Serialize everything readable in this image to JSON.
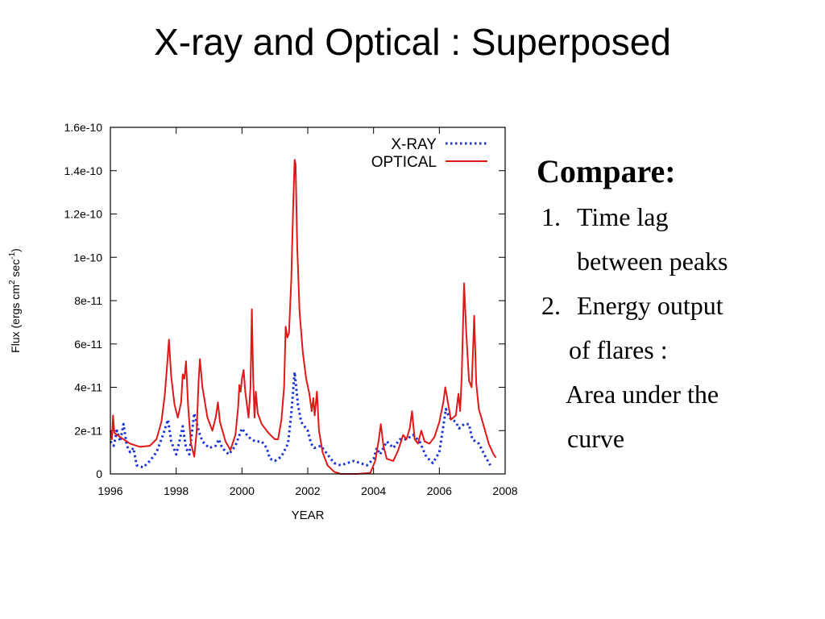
{
  "slide": {
    "title": "X-ray and Optical : Superposed"
  },
  "notes": {
    "heading": "Compare:",
    "items": [
      {
        "number": "1.",
        "lines": [
          "Time lag",
          "between peaks"
        ]
      },
      {
        "number": "2.",
        "lines": [
          "Energy output",
          "of flares :",
          "Area under the",
          "curve"
        ]
      }
    ]
  },
  "chart_data": {
    "type": "line",
    "title": "",
    "xlabel": "YEAR",
    "ylabel": "Flux (ergs cm² sec⁻¹)",
    "ylabel_parts": [
      "Flux (ergs cm",
      "2",
      " sec",
      "-1",
      ")"
    ],
    "xlim": [
      1996,
      2008
    ],
    "ylim": [
      0,
      1.6e-10
    ],
    "x_ticks": [
      1996,
      1998,
      2000,
      2002,
      2004,
      2006,
      2008
    ],
    "x_tick_labels": [
      "1996",
      "1998",
      "2000",
      "2002",
      "2004",
      "2006",
      "2008"
    ],
    "y_ticks": [
      0,
      2e-11,
      4e-11,
      6e-11,
      8e-11,
      1e-10,
      1.2e-10,
      1.4e-10,
      1.6e-10
    ],
    "y_tick_labels": [
      "0",
      "2e-11",
      "4e-11",
      "6e-11",
      "8e-11",
      "1e-10",
      "1.2e-10",
      "1.4e-10",
      "1.6e-10"
    ],
    "grid": false,
    "legend": "top-right",
    "series": [
      {
        "name": "X-RAY",
        "color": "#1a33d6",
        "style": "dotted",
        "points": [
          [
            1996.0,
            1.5e-11
          ],
          [
            1996.1,
            1.3e-11
          ],
          [
            1996.2,
            2e-11
          ],
          [
            1996.3,
            1.5e-11
          ],
          [
            1996.4,
            2.3e-11
          ],
          [
            1996.5,
            1.3e-11
          ],
          [
            1996.6,
            1e-11
          ],
          [
            1996.7,
            1.2e-11
          ],
          [
            1996.8,
            4e-12
          ],
          [
            1997.0,
            3e-12
          ],
          [
            1997.2,
            6e-12
          ],
          [
            1997.4,
            1e-11
          ],
          [
            1997.6,
            1.8e-11
          ],
          [
            1997.75,
            2.5e-11
          ],
          [
            1997.85,
            1.5e-11
          ],
          [
            1998.0,
            9e-12
          ],
          [
            1998.1,
            1.5e-11
          ],
          [
            1998.2,
            2.2e-11
          ],
          [
            1998.3,
            1.2e-11
          ],
          [
            1998.4,
            9e-12
          ],
          [
            1998.55,
            2.8e-11
          ],
          [
            1998.7,
            1.9e-11
          ],
          [
            1998.8,
            1.5e-11
          ],
          [
            1999.0,
            1.2e-11
          ],
          [
            1999.2,
            1.3e-11
          ],
          [
            1999.3,
            1.6e-11
          ],
          [
            1999.4,
            1.2e-11
          ],
          [
            1999.6,
            9e-12
          ],
          [
            1999.8,
            1.3e-11
          ],
          [
            2000.0,
            2.1e-11
          ],
          [
            2000.2,
            1.7e-11
          ],
          [
            2000.4,
            1.5e-11
          ],
          [
            2000.6,
            1.5e-11
          ],
          [
            2000.75,
            1.2e-11
          ],
          [
            2000.85,
            7e-12
          ],
          [
            2001.0,
            6e-12
          ],
          [
            2001.2,
            8e-12
          ],
          [
            2001.4,
            1.4e-11
          ],
          [
            2001.5,
            2.8e-11
          ],
          [
            2001.6,
            4.7e-11
          ],
          [
            2001.7,
            3.2e-11
          ],
          [
            2001.8,
            2.4e-11
          ],
          [
            2002.0,
            2e-11
          ],
          [
            2002.1,
            1.4e-11
          ],
          [
            2002.2,
            1.2e-11
          ],
          [
            2002.4,
            1.3e-11
          ],
          [
            2002.6,
            9e-12
          ],
          [
            2002.8,
            5e-12
          ],
          [
            2003.0,
            4e-12
          ],
          [
            2003.2,
            5e-12
          ],
          [
            2003.4,
            6e-12
          ],
          [
            2003.6,
            5e-12
          ],
          [
            2003.8,
            4e-12
          ],
          [
            2004.0,
            7e-12
          ],
          [
            2004.1,
            1.2e-11
          ],
          [
            2004.2,
            9e-12
          ],
          [
            2004.4,
            1.5e-11
          ],
          [
            2004.6,
            1.2e-11
          ],
          [
            2004.8,
            1.6e-11
          ],
          [
            2005.0,
            1.6e-11
          ],
          [
            2005.2,
            1.8e-11
          ],
          [
            2005.4,
            1.5e-11
          ],
          [
            2005.6,
            8e-12
          ],
          [
            2005.8,
            5e-12
          ],
          [
            2006.0,
            1e-11
          ],
          [
            2006.1,
            2e-11
          ],
          [
            2006.2,
            3e-11
          ],
          [
            2006.3,
            2.6e-11
          ],
          [
            2006.5,
            2.4e-11
          ],
          [
            2006.6,
            2.1e-11
          ],
          [
            2006.75,
            2.3e-11
          ],
          [
            2006.9,
            2.3e-11
          ],
          [
            2007.0,
            1.6e-11
          ],
          [
            2007.2,
            1.4e-11
          ],
          [
            2007.4,
            8e-12
          ],
          [
            2007.55,
            4e-12
          ]
        ]
      },
      {
        "name": "OPTICAL",
        "color": "#e01818",
        "style": "solid",
        "points": [
          [
            1996.0,
            2e-11
          ],
          [
            1996.05,
            1.6e-11
          ],
          [
            1996.08,
            2.7e-11
          ],
          [
            1996.12,
            1.9e-11
          ],
          [
            1996.3,
            1.7e-11
          ],
          [
            1996.6,
            1.4e-11
          ],
          [
            1996.9,
            1.25e-11
          ],
          [
            1997.2,
            1.3e-11
          ],
          [
            1997.4,
            1.6e-11
          ],
          [
            1997.55,
            2.4e-11
          ],
          [
            1997.65,
            3.6e-11
          ],
          [
            1997.72,
            4.9e-11
          ],
          [
            1997.78,
            6.2e-11
          ],
          [
            1997.85,
            4.5e-11
          ],
          [
            1997.95,
            3.2e-11
          ],
          [
            1998.05,
            2.6e-11
          ],
          [
            1998.15,
            3.3e-11
          ],
          [
            1998.2,
            4.6e-11
          ],
          [
            1998.25,
            4.4e-11
          ],
          [
            1998.3,
            5.2e-11
          ],
          [
            1998.36,
            3.2e-11
          ],
          [
            1998.45,
            1.4e-11
          ],
          [
            1998.55,
            8e-12
          ],
          [
            1998.62,
            1.9e-11
          ],
          [
            1998.68,
            4.2e-11
          ],
          [
            1998.72,
            5.3e-11
          ],
          [
            1998.8,
            4e-11
          ],
          [
            1998.95,
            2.6e-11
          ],
          [
            1999.1,
            2e-11
          ],
          [
            1999.2,
            2.6e-11
          ],
          [
            1999.27,
            3.3e-11
          ],
          [
            1999.33,
            2.4e-11
          ],
          [
            1999.5,
            1.5e-11
          ],
          [
            1999.65,
            1.1e-11
          ],
          [
            1999.8,
            1.8e-11
          ],
          [
            1999.88,
            3e-11
          ],
          [
            1999.92,
            4.1e-11
          ],
          [
            1999.96,
            3.8e-11
          ],
          [
            2000.0,
            4.4e-11
          ],
          [
            2000.05,
            4.8e-11
          ],
          [
            2000.1,
            3.8e-11
          ],
          [
            2000.2,
            2.6e-11
          ],
          [
            2000.26,
            4e-11
          ],
          [
            2000.3,
            7.6e-11
          ],
          [
            2000.34,
            4.5e-11
          ],
          [
            2000.38,
            2.6e-11
          ],
          [
            2000.42,
            3.8e-11
          ],
          [
            2000.48,
            2.8e-11
          ],
          [
            2000.6,
            2.3e-11
          ],
          [
            2000.8,
            1.9e-11
          ],
          [
            2001.0,
            1.6e-11
          ],
          [
            2001.1,
            1.6e-11
          ],
          [
            2001.2,
            2.5e-11
          ],
          [
            2001.28,
            4e-11
          ],
          [
            2001.33,
            6.8e-11
          ],
          [
            2001.38,
            6.3e-11
          ],
          [
            2001.43,
            6.5e-11
          ],
          [
            2001.5,
            9e-11
          ],
          [
            2001.56,
            1.25e-10
          ],
          [
            2001.6,
            1.45e-10
          ],
          [
            2001.63,
            1.43e-10
          ],
          [
            2001.68,
            1.05e-10
          ],
          [
            2001.75,
            7.5e-11
          ],
          [
            2001.85,
            5.6e-11
          ],
          [
            2001.95,
            4.4e-11
          ],
          [
            2002.05,
            3.7e-11
          ],
          [
            2002.12,
            2.9e-11
          ],
          [
            2002.17,
            3.5e-11
          ],
          [
            2002.21,
            2.7e-11
          ],
          [
            2002.28,
            3.8e-11
          ],
          [
            2002.34,
            2e-11
          ],
          [
            2002.45,
            1e-11
          ],
          [
            2002.6,
            4e-12
          ],
          [
            2002.8,
            1e-12
          ],
          [
            2003.0,
            0.0
          ],
          [
            2003.5,
            0.0
          ],
          [
            2003.9,
            5e-13
          ],
          [
            2004.05,
            6e-12
          ],
          [
            2004.15,
            1.5e-11
          ],
          [
            2004.22,
            2.3e-11
          ],
          [
            2004.3,
            1.3e-11
          ],
          [
            2004.4,
            7e-12
          ],
          [
            2004.6,
            6e-12
          ],
          [
            2004.75,
            1.1e-11
          ],
          [
            2004.9,
            1.8e-11
          ],
          [
            2005.0,
            1.6e-11
          ],
          [
            2005.1,
            2.1e-11
          ],
          [
            2005.17,
            2.9e-11
          ],
          [
            2005.25,
            1.6e-11
          ],
          [
            2005.35,
            1.4e-11
          ],
          [
            2005.45,
            2e-11
          ],
          [
            2005.55,
            1.5e-11
          ],
          [
            2005.7,
            1.4e-11
          ],
          [
            2005.85,
            1.7e-11
          ],
          [
            2006.0,
            2.4e-11
          ],
          [
            2006.12,
            3.3e-11
          ],
          [
            2006.18,
            4e-11
          ],
          [
            2006.25,
            3.4e-11
          ],
          [
            2006.35,
            2.5e-11
          ],
          [
            2006.5,
            2.7e-11
          ],
          [
            2006.58,
            3.7e-11
          ],
          [
            2006.63,
            2.9e-11
          ],
          [
            2006.68,
            4.5e-11
          ],
          [
            2006.75,
            8.8e-11
          ],
          [
            2006.82,
            6.5e-11
          ],
          [
            2006.9,
            4.3e-11
          ],
          [
            2006.98,
            4e-11
          ],
          [
            2007.02,
            5.6e-11
          ],
          [
            2007.06,
            7.3e-11
          ],
          [
            2007.12,
            4.2e-11
          ],
          [
            2007.2,
            3e-11
          ],
          [
            2007.35,
            2.2e-11
          ],
          [
            2007.5,
            1.4e-11
          ],
          [
            2007.65,
            9e-12
          ],
          [
            2007.72,
            7.5e-12
          ]
        ]
      }
    ]
  }
}
